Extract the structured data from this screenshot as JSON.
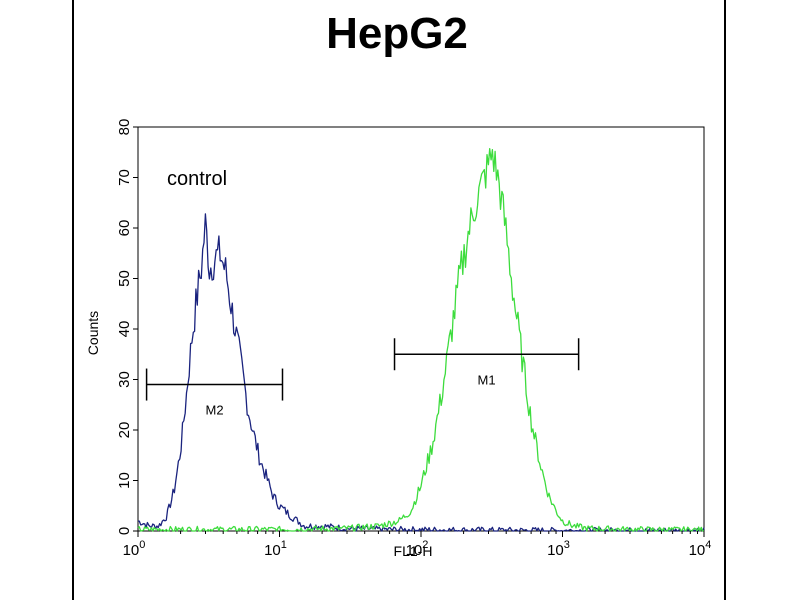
{
  "chart_data": {
    "type": "line",
    "title": "HepG2",
    "xlabel": "FL1-H",
    "ylabel": "Counts",
    "x_scale": "log",
    "xlim": [
      1,
      10000
    ],
    "ylim": [
      0,
      80
    ],
    "x_ticks": [
      {
        "value": 1,
        "base": "10",
        "exp": "0"
      },
      {
        "value": 10,
        "base": "10",
        "exp": "1"
      },
      {
        "value": 100,
        "base": "10",
        "exp": "2"
      },
      {
        "value": 1000,
        "base": "10",
        "exp": "3"
      },
      {
        "value": 10000,
        "base": "10",
        "exp": "4"
      }
    ],
    "y_ticks": [
      0,
      10,
      20,
      30,
      40,
      50,
      60,
      70,
      80
    ],
    "annotation": "control",
    "series": [
      {
        "color": "#1a237e",
        "points": [
          [
            1.0,
            2
          ],
          [
            1.2,
            1
          ],
          [
            1.4,
            1
          ],
          [
            1.6,
            3
          ],
          [
            1.8,
            8
          ],
          [
            2.0,
            16
          ],
          [
            2.2,
            27
          ],
          [
            2.4,
            38
          ],
          [
            2.6,
            46
          ],
          [
            2.8,
            52
          ],
          [
            3.0,
            61
          ],
          [
            3.2,
            52
          ],
          [
            3.5,
            54
          ],
          [
            3.8,
            55
          ],
          [
            4.2,
            51
          ],
          [
            4.6,
            44
          ],
          [
            5.0,
            38
          ],
          [
            5.5,
            31
          ],
          [
            6.0,
            24
          ],
          [
            6.6,
            19
          ],
          [
            7.3,
            14
          ],
          [
            8.0,
            11
          ],
          [
            9.0,
            7
          ],
          [
            10.0,
            5
          ],
          [
            12.0,
            3
          ],
          [
            15.0,
            1
          ],
          [
            20.0,
            1
          ],
          [
            30.0,
            0.5
          ],
          [
            60.0,
            0.3
          ],
          [
            200.0,
            0.2
          ],
          [
            1000.0,
            0.1
          ],
          [
            10000.0,
            0.1
          ]
        ]
      },
      {
        "color": "#3ddc3d",
        "points": [
          [
            1.0,
            0.3
          ],
          [
            10.0,
            0.3
          ],
          [
            30.0,
            0.5
          ],
          [
            50.0,
            1
          ],
          [
            70.0,
            2
          ],
          [
            85.0,
            4
          ],
          [
            100.0,
            9
          ],
          [
            120.0,
            17
          ],
          [
            140.0,
            27
          ],
          [
            165.0,
            40
          ],
          [
            190.0,
            51
          ],
          [
            220.0,
            60
          ],
          [
            250.0,
            66
          ],
          [
            280.0,
            70
          ],
          [
            320.0,
            75
          ],
          [
            360.0,
            68
          ],
          [
            400.0,
            59
          ],
          [
            450.0,
            47
          ],
          [
            520.0,
            34
          ],
          [
            600.0,
            22
          ],
          [
            700.0,
            13
          ],
          [
            800.0,
            7
          ],
          [
            900.0,
            4
          ],
          [
            1000.0,
            2
          ],
          [
            1200.0,
            1
          ],
          [
            1500.0,
            0.5
          ],
          [
            3000.0,
            0.3
          ],
          [
            10000.0,
            0.2
          ]
        ]
      }
    ],
    "gates": [
      {
        "label": "M2",
        "x1": 1.15,
        "x2": 10.5,
        "y": 29
      },
      {
        "label": "M1",
        "x1": 65,
        "x2": 1300,
        "y": 35
      }
    ]
  }
}
